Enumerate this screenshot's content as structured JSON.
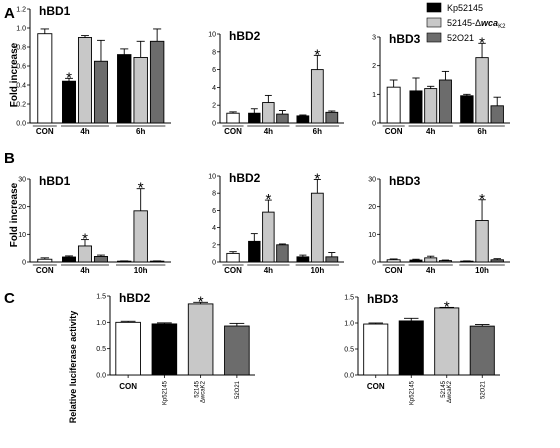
{
  "colors": {
    "CON": "#ffffff",
    "Kp52145": "#000000",
    "52145-wca": "#c8c8c8",
    "52O21": "#6c6c6c"
  },
  "legend": {
    "items": [
      {
        "series": "Kp52145",
        "label": "Kp52145"
      },
      {
        "series": "52145-wca",
        "label_prefix": "52145-Δ",
        "label_italic": "wca",
        "label_sub": "K2"
      },
      {
        "series": "52O21",
        "label": "52O21"
      }
    ]
  },
  "panels": [
    {
      "letter": "A",
      "ylabel": "Fold increase"
    },
    {
      "letter": "B",
      "ylabel": "Fold increase"
    },
    {
      "letter": "C",
      "ylabel": "Relative luciferase activity"
    }
  ],
  "chart_data": [
    {
      "id": "A-hBD1",
      "type": "bar",
      "title": "hBD1",
      "ylim": [
        0,
        1.2
      ],
      "yticks": [
        "0.0",
        "0.2",
        "0.4",
        "0.6",
        "0.8",
        "1.0",
        "1.2"
      ],
      "groups": [
        {
          "label": "CON",
          "bars": [
            {
              "series": "CON",
              "value": 0.94,
              "err": 0.05
            }
          ]
        },
        {
          "label": "4h",
          "bars": [
            {
              "series": "Kp52145",
              "value": 0.44,
              "err": 0.03,
              "star": true
            },
            {
              "series": "52145-wca",
              "value": 0.9,
              "err": 0.02
            },
            {
              "series": "52O21",
              "value": 0.65,
              "err": 0.22
            }
          ]
        },
        {
          "label": "6h",
          "bars": [
            {
              "series": "Kp52145",
              "value": 0.72,
              "err": 0.06
            },
            {
              "series": "52145-wca",
              "value": 0.69,
              "err": 0.17
            },
            {
              "series": "52O21",
              "value": 0.86,
              "err": 0.13
            }
          ]
        }
      ]
    },
    {
      "id": "A-hBD2",
      "type": "bar",
      "title": "hBD2",
      "ylim": [
        0,
        10
      ],
      "yticks": [
        "0",
        "2",
        "4",
        "6",
        "8",
        "10"
      ],
      "groups": [
        {
          "label": "CON",
          "bars": [
            {
              "series": "CON",
              "value": 1.1,
              "err": 0.15
            }
          ]
        },
        {
          "label": "4h",
          "bars": [
            {
              "series": "Kp52145",
              "value": 1.1,
              "err": 0.5
            },
            {
              "series": "52145-wca",
              "value": 2.3,
              "err": 0.8
            },
            {
              "series": "52O21",
              "value": 1.0,
              "err": 0.4
            }
          ]
        },
        {
          "label": "6h",
          "bars": [
            {
              "series": "Kp52145",
              "value": 0.8,
              "err": 0.1
            },
            {
              "series": "52145-wca",
              "value": 6.0,
              "err": 1.6,
              "star": true
            },
            {
              "series": "52O21",
              "value": 1.2,
              "err": 0.15
            }
          ]
        }
      ]
    },
    {
      "id": "A-hBD3",
      "type": "bar",
      "title": "hBD3",
      "ylim": [
        0,
        3
      ],
      "yticks": [
        "0",
        "1",
        "2",
        "3"
      ],
      "groups": [
        {
          "label": "CON",
          "bars": [
            {
              "series": "CON",
              "value": 1.25,
              "err": 0.25
            }
          ]
        },
        {
          "label": "4h",
          "bars": [
            {
              "series": "Kp52145",
              "value": 1.12,
              "err": 0.45
            },
            {
              "series": "52145-wca",
              "value": 1.2,
              "err": 0.08
            },
            {
              "series": "52O21",
              "value": 1.5,
              "err": 0.3
            }
          ]
        },
        {
          "label": "6h",
          "bars": [
            {
              "series": "Kp52145",
              "value": 0.95,
              "err": 0.05
            },
            {
              "series": "52145-wca",
              "value": 2.28,
              "err": 0.5,
              "star": true
            },
            {
              "series": "52O21",
              "value": 0.6,
              "err": 0.3
            }
          ]
        }
      ]
    },
    {
      "id": "B-hBD1",
      "type": "bar",
      "title": "hBD1",
      "ylim": [
        0,
        30
      ],
      "yticks": [
        "0",
        "10",
        "20",
        "30"
      ],
      "groups": [
        {
          "label": "CON",
          "bars": [
            {
              "series": "CON",
              "value": 1.0,
              "err": 0.5
            }
          ]
        },
        {
          "label": "4h",
          "bars": [
            {
              "series": "Kp52145",
              "value": 1.8,
              "err": 0.4
            },
            {
              "series": "52145-wca",
              "value": 5.8,
              "err": 2.3,
              "star": true
            },
            {
              "series": "52O21",
              "value": 2.0,
              "err": 0.5
            }
          ]
        },
        {
          "label": "10h",
          "bars": [
            {
              "series": "Kp52145",
              "value": 0.3,
              "err": 0.1
            },
            {
              "series": "52145-wca",
              "value": 18.5,
              "err": 8.0,
              "star": true
            },
            {
              "series": "52O21",
              "value": 0.3,
              "err": 0.1
            }
          ]
        }
      ]
    },
    {
      "id": "B-hBD2",
      "type": "bar",
      "title": "hBD2",
      "ylim": [
        0,
        10
      ],
      "yticks": [
        "0",
        "2",
        "4",
        "6",
        "8",
        "10"
      ],
      "groups": [
        {
          "label": "CON",
          "bars": [
            {
              "series": "CON",
              "value": 1.0,
              "err": 0.2
            }
          ]
        },
        {
          "label": "4h",
          "bars": [
            {
              "series": "Kp52145",
              "value": 2.4,
              "err": 0.9
            },
            {
              "series": "52145-wca",
              "value": 5.8,
              "err": 1.4,
              "star": true
            },
            {
              "series": "52O21",
              "value": 2.0,
              "err": 0.1
            }
          ]
        },
        {
          "label": "10h",
          "bars": [
            {
              "series": "Kp52145",
              "value": 0.6,
              "err": 0.2
            },
            {
              "series": "52145-wca",
              "value": 8.0,
              "err": 1.6,
              "star": true
            },
            {
              "series": "52O21",
              "value": 0.6,
              "err": 0.5
            }
          ]
        }
      ]
    },
    {
      "id": "B-hBD3",
      "type": "bar",
      "title": "hBD3",
      "ylim": [
        0,
        30
      ],
      "yticks": [
        "0",
        "10",
        "20",
        "30"
      ],
      "groups": [
        {
          "label": "CON",
          "bars": [
            {
              "series": "CON",
              "value": 0.8,
              "err": 0.3
            }
          ]
        },
        {
          "label": "4h",
          "bars": [
            {
              "series": "Kp52145",
              "value": 0.7,
              "err": 0.3
            },
            {
              "series": "52145-wca",
              "value": 1.5,
              "err": 0.6
            },
            {
              "series": "52O21",
              "value": 0.5,
              "err": 0.2
            }
          ]
        },
        {
          "label": "10h",
          "bars": [
            {
              "series": "Kp52145",
              "value": 0.3,
              "err": 0.1
            },
            {
              "series": "52145-wca",
              "value": 15.0,
              "err": 7.5,
              "star": true
            },
            {
              "series": "52O21",
              "value": 0.8,
              "err": 0.4
            }
          ]
        }
      ]
    },
    {
      "id": "C-hBD2",
      "type": "bar",
      "title": "hBD2",
      "ylim": [
        0,
        1.5
      ],
      "yticks": [
        "0.0",
        "0.5",
        "1.0",
        "1.5"
      ],
      "bars": [
        {
          "series": "CON",
          "label": "CON",
          "value": 1.0,
          "err": 0.02
        },
        {
          "series": "Kp52145",
          "label": "Kp52145",
          "value": 0.97,
          "err": 0.02
        },
        {
          "series": "52145-wca",
          "label_lines": [
            "52145",
            "ΔwcaK2"
          ],
          "value": 1.35,
          "err": 0.03,
          "star": true
        },
        {
          "series": "52O21",
          "label": "52O21",
          "value": 0.93,
          "err": 0.05
        }
      ]
    },
    {
      "id": "C-hBD3",
      "type": "bar",
      "title": "hBD3",
      "ylim": [
        0,
        1.5
      ],
      "yticks": [
        "0.0",
        "0.5",
        "1.0",
        "1.5"
      ],
      "bars": [
        {
          "series": "CON",
          "label": "CON",
          "value": 0.98,
          "err": 0.02
        },
        {
          "series": "Kp52145",
          "label": "Kp52145",
          "value": 1.04,
          "err": 0.05
        },
        {
          "series": "52145-wca",
          "label_lines": [
            "52145",
            "ΔwcaK2"
          ],
          "value": 1.29,
          "err": 0.01,
          "star": true
        },
        {
          "series": "52O21",
          "label": "52O21",
          "value": 0.94,
          "err": 0.03
        }
      ]
    }
  ]
}
